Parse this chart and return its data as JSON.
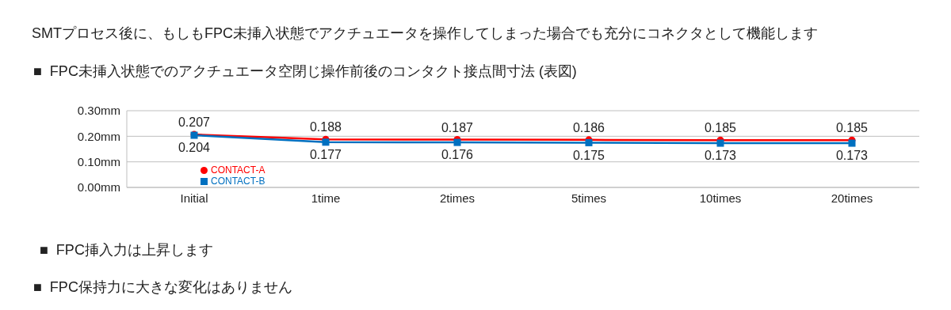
{
  "chart_data": {
    "type": "line",
    "title": "SMTプロセス後に、もしもFPC未挿入状態でアクチュエータを操作してしまった場合でも充分にコネクタとして機能します",
    "subtitle": "■  FPC未挿入状態でのアクチュエータ空閉じ操作前後のコンタクト接点間寸法 (表図)",
    "categories": [
      "Initial",
      "1time",
      "2times",
      "5times",
      "10times",
      "20times"
    ],
    "series": [
      {
        "name": "CONTACT-A",
        "color": "#ff0000",
        "marker": "circle",
        "values": [
          0.207,
          0.188,
          0.187,
          0.186,
          0.185,
          0.185
        ]
      },
      {
        "name": "CONTACT-B",
        "color": "#0070c0",
        "marker": "square",
        "values": [
          0.204,
          0.177,
          0.176,
          0.175,
          0.173,
          0.173
        ]
      }
    ],
    "ylim": [
      0,
      0.3
    ],
    "yticks": [
      {
        "value": 0,
        "label": "0.00mm"
      },
      {
        "value": 0.1,
        "label": "0.10mm"
      },
      {
        "value": 0.2,
        "label": "0.20mm"
      },
      {
        "value": 0.3,
        "label": "0.30mm"
      }
    ],
    "grid": "y",
    "legend": "bottom left",
    "data_labels": true,
    "annotations": [
      "■  FPC挿入力は上昇します",
      "■  FPC保持力に大きな変化はありません"
    ]
  }
}
